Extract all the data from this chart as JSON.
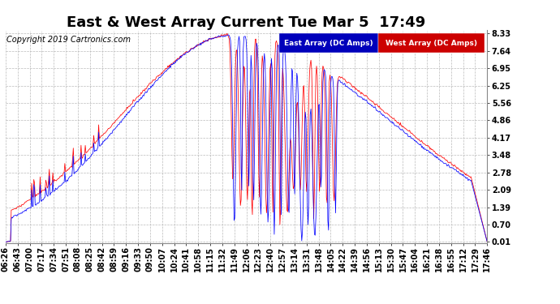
{
  "title": "East & West Array Current Tue Mar 5  17:49",
  "copyright": "Copyright 2019 Cartronics.com",
  "legend_east": "East Array (DC Amps)",
  "legend_west": "West Array (DC Amps)",
  "legend_east_bg": "#0000bb",
  "legend_west_bg": "#cc0000",
  "background_color": "#ffffff",
  "plot_bg_color": "#ffffff",
  "grid_color": "#bbbbbb",
  "east_color": "#0000ff",
  "west_color": "#ff0000",
  "yticks": [
    8.33,
    7.64,
    6.95,
    6.25,
    5.56,
    4.86,
    4.17,
    3.48,
    2.78,
    2.09,
    1.39,
    0.7,
    0.01
  ],
  "xtick_labels": [
    "06:26",
    "06:43",
    "07:00",
    "07:17",
    "07:34",
    "07:51",
    "08:08",
    "08:25",
    "08:42",
    "08:59",
    "09:16",
    "09:33",
    "09:50",
    "10:07",
    "10:24",
    "10:41",
    "10:58",
    "11:15",
    "11:32",
    "11:49",
    "12:06",
    "12:23",
    "12:40",
    "12:57",
    "13:14",
    "13:31",
    "13:48",
    "14:05",
    "14:22",
    "14:39",
    "14:56",
    "15:13",
    "15:30",
    "15:47",
    "16:04",
    "16:21",
    "16:38",
    "16:55",
    "17:12",
    "17:29",
    "17:46"
  ],
  "ymin": 0.01,
  "ymax": 8.33,
  "title_fontsize": 13,
  "axis_fontsize": 7,
  "copyright_fontsize": 7
}
